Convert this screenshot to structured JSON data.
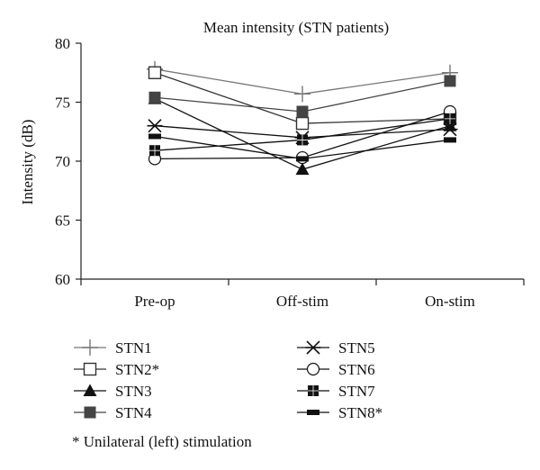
{
  "chart_data": {
    "type": "line",
    "title": "Mean intensity (STN patients)",
    "xlabel": "",
    "ylabel": "Intensity (dB)",
    "categories": [
      "Pre-op",
      "Off-stim",
      "On-stim"
    ],
    "ylim": [
      60,
      80
    ],
    "yticks": [
      60,
      65,
      70,
      75,
      80
    ],
    "grid": false,
    "legend_position": "bottom",
    "series": [
      {
        "name": "STN1",
        "marker": "plus",
        "color": "#777777",
        "values": [
          77.8,
          75.7,
          77.5
        ]
      },
      {
        "name": "STN2*",
        "marker": "square-open",
        "color": "#333333",
        "values": [
          77.5,
          73.2,
          73.6
        ]
      },
      {
        "name": "STN3",
        "marker": "triangle",
        "color": "#111111",
        "values": [
          75.3,
          69.3,
          73.0
        ]
      },
      {
        "name": "STN4",
        "marker": "square-filled",
        "color": "#444444",
        "values": [
          75.4,
          74.2,
          76.8
        ]
      },
      {
        "name": "STN5",
        "marker": "star",
        "color": "#111111",
        "values": [
          73.0,
          72.0,
          72.7
        ]
      },
      {
        "name": "STN6",
        "marker": "circle-open",
        "color": "#111111",
        "values": [
          70.2,
          70.3,
          74.2
        ]
      },
      {
        "name": "STN7",
        "marker": "square-small",
        "color": "#111111",
        "values": [
          70.9,
          71.8,
          73.6
        ]
      },
      {
        "name": "STN8*",
        "marker": "dash",
        "color": "#111111",
        "values": [
          72.1,
          70.2,
          71.8
        ]
      }
    ],
    "footnote": "* Unilateral (left) stimulation"
  }
}
